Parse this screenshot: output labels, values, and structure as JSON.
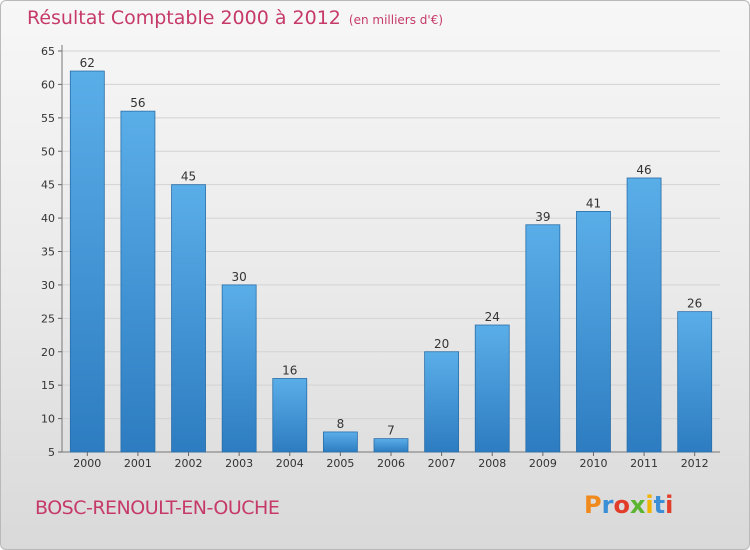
{
  "chart_data": {
    "type": "bar",
    "title": "Résultat Comptable 2000 à 2012",
    "subtitle": "(en milliers d'€)",
    "categories": [
      "2000",
      "2001",
      "2002",
      "2003",
      "2004",
      "2005",
      "2006",
      "2007",
      "2008",
      "2009",
      "2010",
      "2011",
      "2012"
    ],
    "values": [
      62,
      56,
      45,
      30,
      16,
      8,
      7,
      20,
      24,
      39,
      41,
      46,
      26
    ],
    "yticks": [
      5,
      10,
      15,
      20,
      25,
      30,
      35,
      40,
      45,
      50,
      55,
      60,
      65
    ],
    "ylim": [
      5,
      65
    ],
    "xlabel": "",
    "ylabel": "",
    "grid": true,
    "bar_color": "#4a9bdc"
  },
  "footer": {
    "town": "BOSC-RENOULT-EN-OUCHE",
    "logo_letters": [
      "P",
      "r",
      "o",
      "x",
      "i",
      "t",
      "i"
    ],
    "logo_colors": [
      "#f08a1c",
      "#3a8fd6",
      "#e23c2a",
      "#5bb531",
      "#f0b400",
      "#3a8fd6",
      "#e23c2a"
    ]
  }
}
